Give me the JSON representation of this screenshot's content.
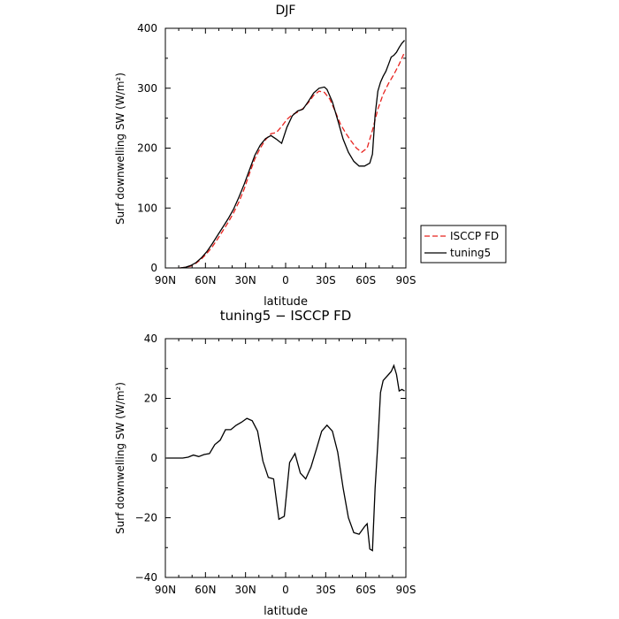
{
  "chart_data": [
    {
      "type": "line",
      "title": "DJF",
      "xlabel": "latitude",
      "ylabel": "Surf downwelling SW (W/m²)",
      "x_ticks": [
        "90N",
        "60N",
        "30N",
        "0",
        "30S",
        "60S",
        "90S"
      ],
      "x_tick_values": [
        90,
        60,
        30,
        0,
        -30,
        -60,
        -90
      ],
      "y_ticks": [
        "0",
        "100",
        "200",
        "300",
        "400"
      ],
      "y_tick_values": [
        0,
        100,
        200,
        300,
        400
      ],
      "xlim": [
        90,
        -90
      ],
      "ylim": [
        0,
        400
      ],
      "legend_position": "right",
      "series": [
        {
          "name": "ISCCP FD",
          "color": "#e8231f",
          "dash": "dashed",
          "x": [
            79,
            75,
            71,
            67,
            63,
            59,
            55,
            51,
            47,
            43,
            39,
            35,
            31,
            27,
            23,
            19,
            15,
            11,
            7,
            3,
            -1,
            -5,
            -9,
            -13,
            -17,
            -21,
            -25,
            -29,
            -33,
            -37,
            -41,
            -45,
            -49,
            -53,
            -57,
            -61,
            -65,
            -69,
            -73,
            -77,
            -81,
            -85,
            -89
          ],
          "values": [
            0,
            1,
            3,
            8,
            15,
            24,
            35,
            48,
            62,
            76,
            92,
            110,
            132,
            158,
            182,
            200,
            214,
            224,
            226,
            236,
            248,
            256,
            260,
            266,
            276,
            288,
            295,
            293,
            282,
            262,
            240,
            225,
            212,
            200,
            193,
            200,
            230,
            265,
            290,
            308,
            323,
            340,
            360
          ]
        },
        {
          "name": "tuning5",
          "color": "#000000",
          "dash": "solid",
          "x": [
            79,
            75,
            71,
            67,
            63,
            59,
            55,
            51,
            47,
            43,
            39,
            35,
            31,
            27,
            23,
            19,
            15,
            11,
            7,
            3,
            -1,
            -5,
            -9,
            -13,
            -17,
            -21,
            -25,
            -29,
            -31,
            -35,
            -39,
            -43,
            -47,
            -51,
            -55,
            -59,
            -63,
            -65,
            -67,
            -69,
            -71,
            -73,
            -75,
            -77,
            -79,
            -81,
            -83,
            -85,
            -87,
            -89
          ],
          "values": [
            0,
            1,
            4,
            9,
            17,
            27,
            40,
            54,
            68,
            82,
            98,
            118,
            140,
            164,
            188,
            205,
            216,
            221,
            215,
            208,
            235,
            254,
            262,
            265,
            278,
            292,
            300,
            302,
            298,
            277,
            247,
            215,
            193,
            178,
            170,
            170,
            175,
            190,
            255,
            295,
            310,
            320,
            328,
            340,
            352,
            355,
            360,
            368,
            375,
            380
          ]
        }
      ]
    },
    {
      "type": "line",
      "title": "tuning5 − ISCCP FD",
      "xlabel": "latitude",
      "ylabel": "Surf downwelling SW (W/m²)",
      "x_ticks": [
        "90N",
        "60N",
        "30N",
        "0",
        "30S",
        "60S",
        "90S"
      ],
      "x_tick_values": [
        90,
        60,
        30,
        0,
        -30,
        -60,
        -90
      ],
      "y_ticks": [
        "−40",
        "−20",
        "0",
        "20",
        "40"
      ],
      "y_tick_values": [
        -40,
        -20,
        0,
        20,
        40
      ],
      "xlim": [
        90,
        -90
      ],
      "ylim": [
        -40,
        40
      ],
      "series": [
        {
          "name": "",
          "color": "#000000",
          "dash": "solid",
          "x": [
            89,
            85,
            81,
            77,
            73,
            69,
            65,
            61,
            57,
            53,
            49,
            45,
            41,
            37,
            33,
            29,
            25,
            21,
            17,
            13,
            9,
            5,
            1,
            -3,
            -7,
            -11,
            -15,
            -19,
            -23,
            -27,
            -31,
            -35,
            -39,
            -43,
            -47,
            -51,
            -55,
            -59,
            -61,
            -63,
            -65,
            -67,
            -69,
            -71,
            -73,
            -75,
            -77,
            -79,
            -81,
            -83,
            -85,
            -87,
            -89
          ],
          "values": [
            0,
            0,
            0,
            0,
            0.3,
            1,
            0.5,
            1.2,
            1.5,
            4.5,
            6,
            9.5,
            9.5,
            11,
            12,
            13.3,
            12.5,
            9,
            -1,
            -6.5,
            -7,
            -20.5,
            -19.5,
            -1.5,
            1.5,
            -5,
            -7,
            -3,
            3,
            9,
            11,
            9,
            2,
            -10,
            -20,
            -25,
            -25.5,
            -23,
            -22,
            -30.5,
            -31,
            -10,
            5,
            22,
            26,
            27,
            28,
            29,
            31,
            28,
            22.5,
            23,
            22.5
          ]
        }
      ]
    }
  ]
}
